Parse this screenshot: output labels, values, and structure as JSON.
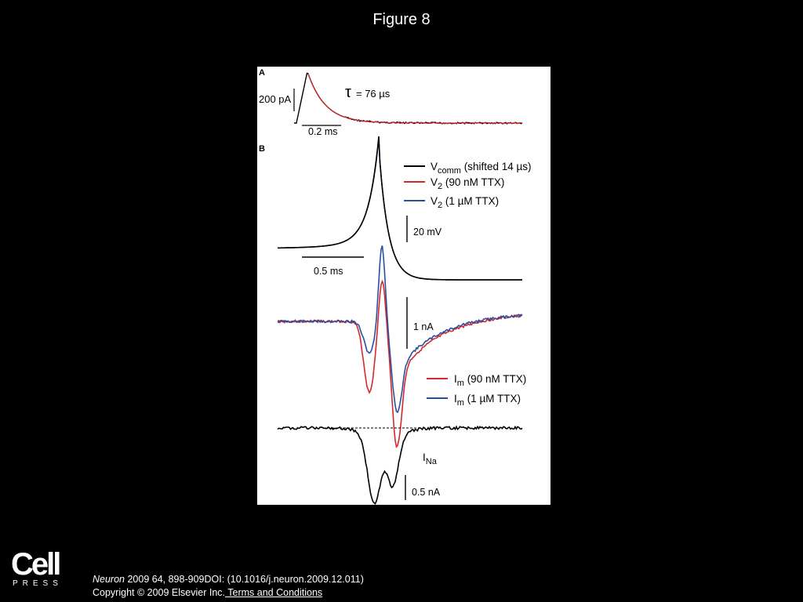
{
  "page": {
    "title": "Figure 8"
  },
  "panel_a": {
    "label": "A",
    "scale_y": "200 pA",
    "scale_x": "0.2 ms",
    "tau_symbol": "τ",
    "tau_value": "= 76 µs"
  },
  "panel_b": {
    "label": "B",
    "legend_top": [
      {
        "main": "V",
        "sub": "comm",
        "rest": " (shifted 14 µs)",
        "color": "#000000"
      },
      {
        "main": "V",
        "sub": "2",
        "rest": " (90 nM TTX)",
        "color": "#d62828"
      },
      {
        "main": "V",
        "sub": "2",
        "rest": " (1 µM TTX)",
        "color": "#2b4fa0"
      }
    ],
    "scale_voltage": "20 mV",
    "scale_time": "0.5 ms",
    "scale_current": "1 nA",
    "legend_current": [
      {
        "main": "I",
        "sub": "m",
        "rest": " (90 nM TTX)",
        "color": "#d62828"
      },
      {
        "main": "I",
        "sub": "m",
        "rest": " (1 µM TTX)",
        "color": "#2b4fa0"
      }
    ],
    "ina_main": "I",
    "ina_sub": "Na",
    "scale_ina": "0.5 nA"
  },
  "footer": {
    "logo_main": "Cell",
    "logo_sub": "PRESS",
    "journal": "Neuron",
    "citation": " 2009 64, 898-909DOI: (10.1016/j.neuron.2009.12.011)",
    "copyright": "Copyright © 2009 Elsevier Inc.",
    "terms_link": " Terms and Conditions"
  }
}
